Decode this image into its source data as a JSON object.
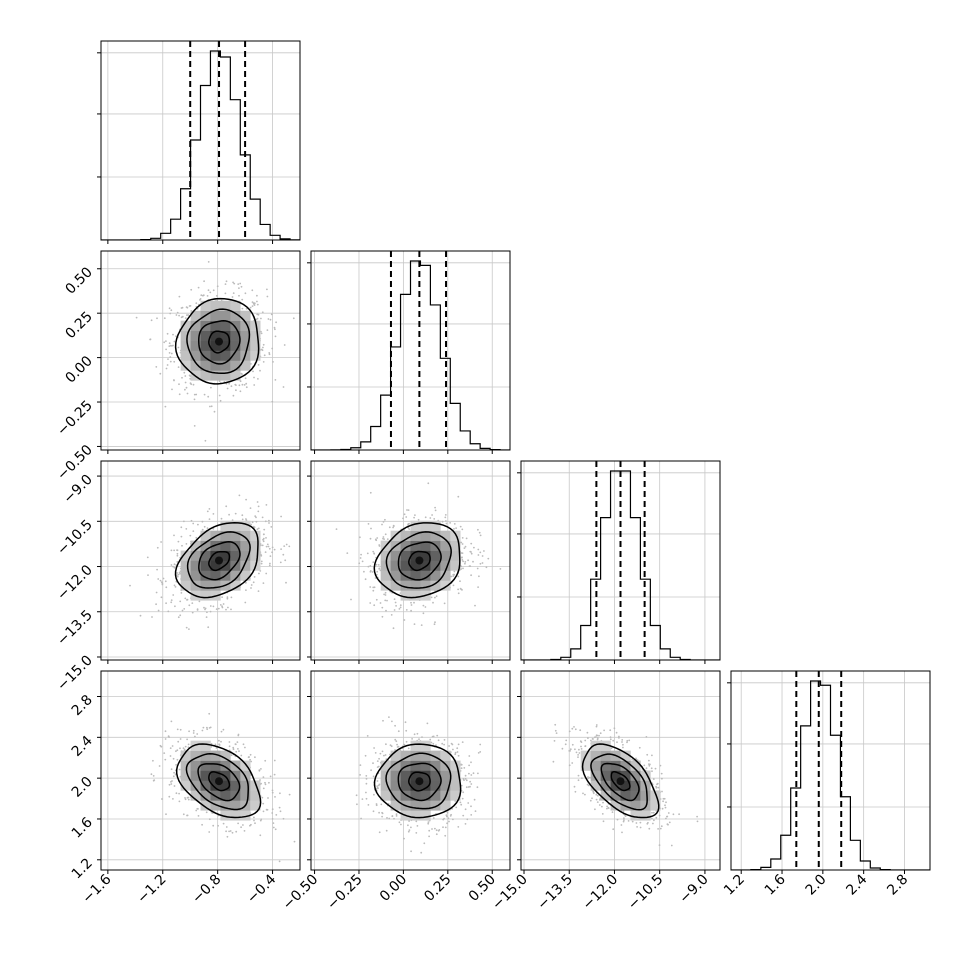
{
  "chart_data": {
    "type": "corner",
    "n_params": 4,
    "params": [
      {
        "range": [
          -1.65,
          -0.2
        ],
        "ticks": [
          -1.6,
          -1.2,
          -0.8,
          -0.4
        ],
        "tick_labels": [
          "−1.6",
          "−1.2",
          "−0.8",
          "−0.4"
        ],
        "quantiles": [
          -1.0,
          -0.79,
          -0.6
        ],
        "mean": -0.79,
        "sd": 0.15
      },
      {
        "range": [
          -0.52,
          0.6
        ],
        "ticks": [
          -0.5,
          -0.25,
          0.0,
          0.25,
          0.5
        ],
        "tick_labels": [
          "−0.50",
          "−0.25",
          "0.00",
          "0.25",
          "0.50"
        ],
        "quantiles": [
          -0.07,
          0.09,
          0.24
        ],
        "mean": 0.09,
        "sd": 0.12
      },
      {
        "range": [
          -15.1,
          -8.5
        ],
        "ticks": [
          -15.0,
          -13.5,
          -12.0,
          -10.5,
          -9.0
        ],
        "tick_labels": [
          "−15.0",
          "−13.5",
          "−12.0",
          "−10.5",
          "−9.0"
        ],
        "quantiles": [
          -12.6,
          -11.8,
          -11.0
        ],
        "mean": -11.8,
        "sd": 0.62
      },
      {
        "range": [
          1.1,
          3.05
        ],
        "ticks": [
          1.2,
          1.6,
          2.0,
          2.4,
          2.8
        ],
        "tick_labels": [
          "1.2",
          "1.6",
          "2.0",
          "2.4",
          "2.8"
        ],
        "quantiles": [
          1.74,
          1.96,
          2.18
        ],
        "mean": 1.97,
        "sd": 0.18
      }
    ],
    "correlations": [
      {
        "i": 0,
        "j": 1,
        "r": 0.05
      },
      {
        "i": 0,
        "j": 2,
        "r": 0.35
      },
      {
        "i": 1,
        "j": 2,
        "r": 0.18
      },
      {
        "i": 0,
        "j": 3,
        "r": -0.4
      },
      {
        "i": 1,
        "j": 3,
        "r": 0.0
      },
      {
        "i": 2,
        "j": 3,
        "r": -0.55
      }
    ],
    "contour_levels_sigma": [
      0.5,
      1.0,
      1.5,
      2.0
    ],
    "bins": 20,
    "grid": true,
    "line_color": "#000000",
    "point_color": "#bbbbbb"
  }
}
